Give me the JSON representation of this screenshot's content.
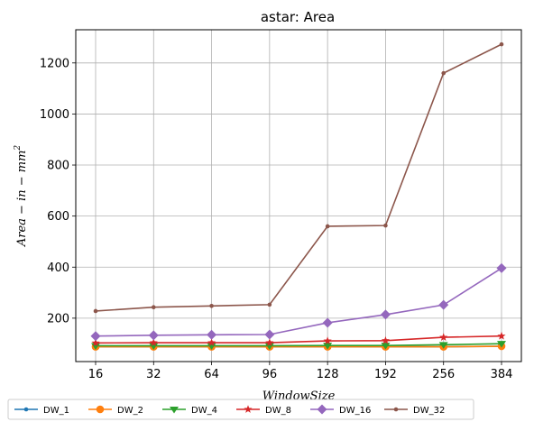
{
  "chart_data": {
    "type": "line",
    "title": "astar: Area",
    "xlabel": "WindowSize",
    "ylabel": {
      "main": "Area − in − mm",
      "superscript": "2"
    },
    "categories": [
      "16",
      "32",
      "64",
      "96",
      "128",
      "192",
      "256",
      "384"
    ],
    "ylim": [
      30,
      1330
    ],
    "yticks": [
      200,
      400,
      600,
      800,
      1000,
      1200
    ],
    "grid": true,
    "legend_position": "bottom",
    "series": [
      {
        "name": "DW_1",
        "color": "#1f77b4",
        "marker": "dot",
        "values": [
          88,
          88,
          88,
          88,
          88,
          88,
          88,
          90
        ]
      },
      {
        "name": "DW_2",
        "color": "#ff7f0e",
        "marker": "circle",
        "values": [
          88,
          88,
          88,
          88,
          88,
          88,
          88,
          90
        ]
      },
      {
        "name": "DW_4",
        "color": "#2ca02c",
        "marker": "triangle",
        "values": [
          92,
          92,
          92,
          92,
          93,
          93,
          96,
          100
        ]
      },
      {
        "name": "DW_8",
        "color": "#d62728",
        "marker": "star",
        "values": [
          103,
          104,
          104,
          104,
          111,
          112,
          125,
          130
        ]
      },
      {
        "name": "DW_16",
        "color": "#9467bd",
        "marker": "diamond",
        "values": [
          130,
          133,
          135,
          136,
          182,
          214,
          252,
          396
        ]
      },
      {
        "name": "DW_32",
        "color": "#8c564b",
        "marker": "dot",
        "values": [
          228,
          243,
          248,
          253,
          560,
          563,
          1160,
          1273
        ]
      }
    ]
  }
}
